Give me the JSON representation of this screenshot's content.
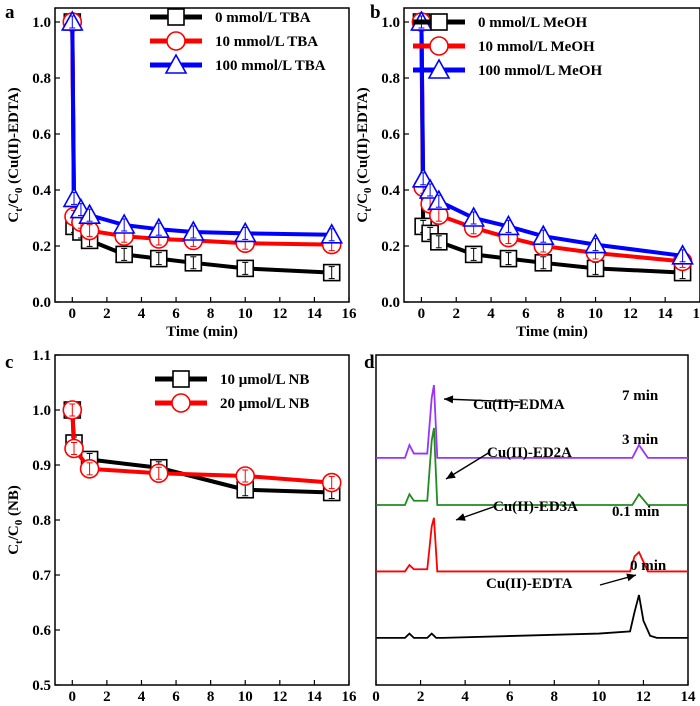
{
  "chart_data": [
    {
      "panel": "a",
      "type": "line",
      "xlabel": "Time (min)",
      "ylabel": "Ct/C0 (Cu(II)-EDTA)",
      "ylabel_parts": {
        "c": "C",
        "t": "t",
        "sep": "/C",
        "zero": "0",
        "rest": " (Cu(II)-EDTA)"
      },
      "xlim": [
        -1,
        16
      ],
      "ylim": [
        0,
        1.05
      ],
      "xticks": [
        0,
        2,
        4,
        6,
        8,
        10,
        12,
        14,
        16
      ],
      "yticks": [
        0.0,
        0.2,
        0.4,
        0.6,
        0.8,
        1.0
      ],
      "ytick_labels": [
        "0.0",
        "0.2",
        "0.4",
        "0.6",
        "0.8",
        "1.0"
      ],
      "legend_position": "top-right",
      "series": [
        {
          "name": "0 mmol/L TBA",
          "color": "#000000",
          "marker": "square",
          "x": [
            0,
            0.1,
            0.5,
            1,
            3,
            5,
            7,
            10,
            15
          ],
          "y": [
            1.0,
            0.27,
            0.25,
            0.22,
            0.17,
            0.155,
            0.14,
            0.12,
            0.105
          ]
        },
        {
          "name": "10 mmol/L TBA",
          "color": "#ff0000",
          "marker": "circle",
          "x": [
            0,
            0.1,
            0.5,
            1,
            3,
            5,
            7,
            10,
            15
          ],
          "y": [
            1.0,
            0.305,
            0.285,
            0.255,
            0.235,
            0.225,
            0.22,
            0.21,
            0.205
          ]
        },
        {
          "name": "100 mmol/L TBA",
          "color": "#0000ff",
          "marker": "triangle",
          "x": [
            0,
            0.1,
            0.5,
            1,
            3,
            5,
            7,
            10,
            15
          ],
          "y": [
            1.0,
            0.37,
            0.33,
            0.31,
            0.275,
            0.26,
            0.25,
            0.245,
            0.24
          ]
        }
      ]
    },
    {
      "panel": "b",
      "type": "line",
      "xlabel": "Time (min)",
      "ylabel": "Ct/C0 (Cu(II)-EDTA)",
      "ylabel_parts": {
        "c": "C",
        "t": "t",
        "sep": "/C",
        "zero": "0",
        "rest": " (Cu(II)-EDTA)"
      },
      "xlim": [
        -1,
        16
      ],
      "ylim": [
        0,
        1.05
      ],
      "xticks": [
        0,
        2,
        4,
        6,
        8,
        10,
        12,
        14,
        16
      ],
      "yticks": [
        0.0,
        0.2,
        0.4,
        0.6,
        0.8,
        1.0
      ],
      "ytick_labels": [
        "0.0",
        "0.2",
        "0.4",
        "0.6",
        "0.8",
        "1.0"
      ],
      "legend_position": "top-right",
      "series": [
        {
          "name": "0 mmol/L MeOH",
          "color": "#000000",
          "marker": "square",
          "x": [
            0,
            0.1,
            0.5,
            1,
            3,
            5,
            7,
            10,
            15
          ],
          "y": [
            1.0,
            0.27,
            0.245,
            0.215,
            0.17,
            0.155,
            0.14,
            0.12,
            0.105
          ]
        },
        {
          "name": "10 mmol/L MeOH",
          "color": "#ff0000",
          "marker": "circle",
          "x": [
            0,
            0.1,
            0.5,
            1,
            3,
            5,
            7,
            10,
            15
          ],
          "y": [
            1.0,
            0.41,
            0.35,
            0.31,
            0.265,
            0.23,
            0.2,
            0.175,
            0.145
          ]
        },
        {
          "name": "100 mmol/L MeOH",
          "color": "#0000ff",
          "marker": "triangle",
          "x": [
            0,
            0.1,
            0.5,
            1,
            3,
            5,
            7,
            10,
            15
          ],
          "y": [
            1.0,
            0.44,
            0.4,
            0.36,
            0.3,
            0.27,
            0.235,
            0.205,
            0.165
          ]
        }
      ]
    },
    {
      "panel": "c",
      "type": "line",
      "xlabel": "Time (min)",
      "ylabel": "Ct/C0 (NB)",
      "ylabel_parts": {
        "c": "C",
        "t": "t",
        "sep": "/C",
        "zero": "0",
        "rest": " (NB)"
      },
      "xlim": [
        -1,
        16
      ],
      "ylim": [
        0.5,
        1.1
      ],
      "xticks": [
        0,
        2,
        4,
        6,
        8,
        10,
        12,
        14,
        16
      ],
      "yticks": [
        0.5,
        0.6,
        0.7,
        0.8,
        0.9,
        1.0,
        1.1
      ],
      "ytick_labels": [
        "0.5",
        "0.6",
        "0.7",
        "0.8",
        "0.9",
        "1.0",
        "1.1"
      ],
      "legend_position": "top-right",
      "series": [
        {
          "name": "10 μmol/L NB",
          "color": "#000000",
          "marker": "square",
          "x": [
            0,
            0.1,
            1,
            5,
            10,
            15
          ],
          "y": [
            1.0,
            0.94,
            0.91,
            0.895,
            0.855,
            0.85
          ]
        },
        {
          "name": "20 μmol/L NB",
          "color": "#ff0000",
          "marker": "circle",
          "x": [
            0,
            0.1,
            1,
            5,
            10,
            15
          ],
          "y": [
            1.0,
            0.93,
            0.893,
            0.885,
            0.88,
            0.868
          ]
        }
      ]
    },
    {
      "panel": "d",
      "type": "line",
      "xlabel": "Time (min)",
      "xlim": [
        0,
        14
      ],
      "xticks": [
        0,
        2,
        4,
        6,
        8,
        10,
        12,
        14
      ],
      "series": [
        {
          "name": "7 min",
          "color": "#9933ff",
          "annotation": "Cu(II)-EDMA",
          "x": [
            0,
            1.3,
            1.5,
            1.7,
            2.3,
            2.5,
            2.6,
            2.75,
            3,
            10,
            11.5,
            11.8,
            12.2,
            14
          ],
          "y": [
            0.98,
            0.98,
            1.01,
            0.99,
            0.99,
            1.12,
            1.15,
            0.98,
            0.98,
            0.98,
            0.98,
            1.01,
            0.98,
            0.98
          ]
        },
        {
          "name": "3 min",
          "color": "#228b22",
          "annotation": "Cu(II)-ED2A",
          "x": [
            0,
            1.3,
            1.5,
            1.7,
            2.3,
            2.5,
            2.6,
            2.75,
            3,
            10,
            11.5,
            11.8,
            12.2,
            14
          ],
          "y": [
            0.87,
            0.87,
            0.895,
            0.88,
            0.88,
            1.02,
            1.05,
            0.87,
            0.87,
            0.87,
            0.87,
            0.895,
            0.87,
            0.87
          ]
        },
        {
          "name": "0.1 min",
          "color": "#ff0000",
          "annotation": "Cu(II)-ED3A",
          "x": [
            0,
            1.3,
            1.5,
            1.7,
            2.3,
            2.5,
            2.6,
            2.75,
            3,
            10,
            11.4,
            11.6,
            11.8,
            12.2,
            14
          ],
          "y": [
            0.715,
            0.715,
            0.73,
            0.72,
            0.72,
            0.82,
            0.84,
            0.715,
            0.715,
            0.715,
            0.715,
            0.75,
            0.76,
            0.715,
            0.715
          ]
        },
        {
          "name": "0 min",
          "color": "#000000",
          "annotation": "Cu(II)-EDTA",
          "x": [
            0,
            1.3,
            1.5,
            1.7,
            2.3,
            2.5,
            2.7,
            3,
            10,
            11.4,
            11.6,
            11.8,
            12.0,
            12.3,
            12.6,
            14
          ],
          "y": [
            0.56,
            0.56,
            0.57,
            0.56,
            0.56,
            0.57,
            0.56,
            0.56,
            0.57,
            0.575,
            0.62,
            0.66,
            0.6,
            0.565,
            0.56,
            0.56
          ]
        }
      ]
    }
  ]
}
